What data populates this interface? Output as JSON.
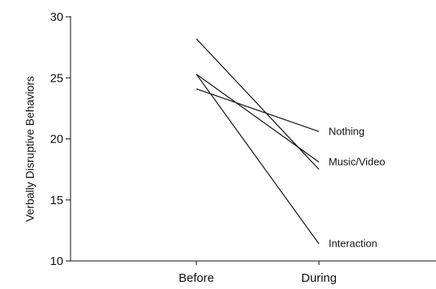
{
  "chart_data": {
    "type": "line",
    "title": "",
    "xlabel": "",
    "ylabel": "Verbally Disruptive Behaviors",
    "x": [
      "Before",
      "During"
    ],
    "ylim": [
      10,
      30
    ],
    "yticks": [
      10,
      15,
      20,
      25,
      30
    ],
    "grid": false,
    "legend": "inline labels at line ends",
    "series": [
      {
        "name": "Nothing",
        "values": [
          24.1,
          20.6
        ]
      },
      {
        "name": "Music/Video",
        "values": [
          25.3,
          18.1
        ]
      },
      {
        "name": "",
        "values": [
          28.2,
          17.5
        ]
      },
      {
        "name": "Interaction",
        "values": [
          25.3,
          11.4
        ]
      }
    ],
    "colors": {
      "line": "#111111",
      "axis": "#111111",
      "background": "#ffffff"
    }
  }
}
